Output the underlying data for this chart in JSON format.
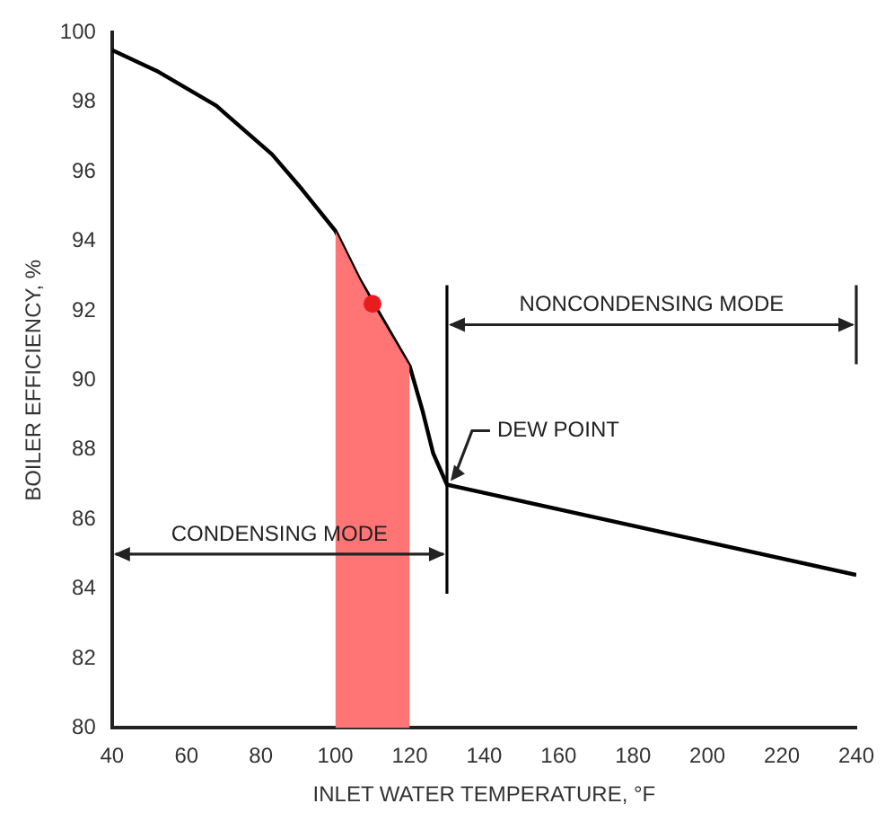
{
  "chart_data": {
    "type": "line",
    "xlabel": "INLET WATER TEMPERATURE, °F",
    "ylabel": "BOILER EFFICIENCY, %",
    "xlim": [
      40,
      240
    ],
    "xticks": [
      40,
      60,
      80,
      100,
      120,
      140,
      160,
      180,
      200,
      220,
      240
    ],
    "ylim": [
      80,
      100
    ],
    "yticks": [
      80,
      82,
      84,
      86,
      88,
      90,
      92,
      94,
      96,
      98,
      100
    ],
    "series": [
      {
        "type": "area",
        "color": "#ff7474",
        "x": [
          100,
          106.5,
          110,
          120
        ],
        "values": [
          94.3,
          92.9,
          92.2,
          90.4
        ],
        "marker": "none"
      },
      {
        "type": "line",
        "color": "#000000",
        "x": [
          40,
          52,
          68,
          83,
          91,
          100,
          106.5,
          120,
          123.5,
          126.3,
          130,
          240
        ],
        "values": [
          99.5,
          98.9,
          97.9,
          96.5,
          95.5,
          94.3,
          92.9,
          90.4,
          89.1,
          87.9,
          87.0,
          84.4
        ],
        "marker": "none"
      },
      {
        "type": "scatter",
        "color": "#e81c1c",
        "x": [
          110
        ],
        "values": [
          92.2
        ],
        "marker": "circle"
      }
    ],
    "ref_lines": [
      {
        "axis": "x",
        "value": 130,
        "color": "#000000"
      }
    ],
    "annotations": [
      "CONDENSING MODE",
      "NONCONDENSING MODE",
      {
        "text": "DEW POINT",
        "x": 130,
        "y": 87.0
      }
    ]
  }
}
